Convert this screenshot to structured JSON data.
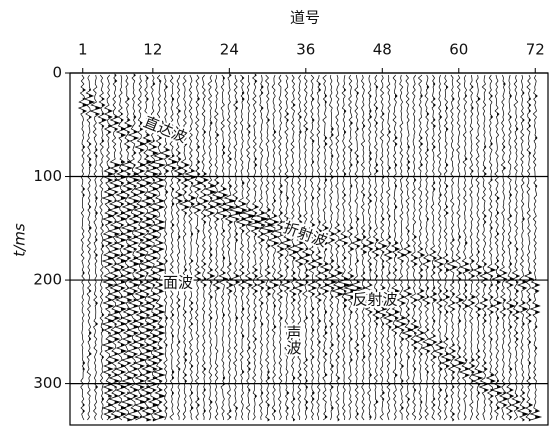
{
  "chart_data": {
    "type": "seismic",
    "title": "道号",
    "y_label": "t/ms",
    "xlim": [
      -1,
      74
    ],
    "xticks": [
      1,
      12,
      24,
      36,
      48,
      60,
      72
    ],
    "ylim": [
      0,
      340
    ],
    "yticks": [
      0,
      100,
      200,
      300
    ],
    "grid": true,
    "y_reversed": true,
    "color": "#000000",
    "annotations": [
      "直达波",
      "折射波",
      "面波",
      "反射波",
      "声波"
    ]
  }
}
